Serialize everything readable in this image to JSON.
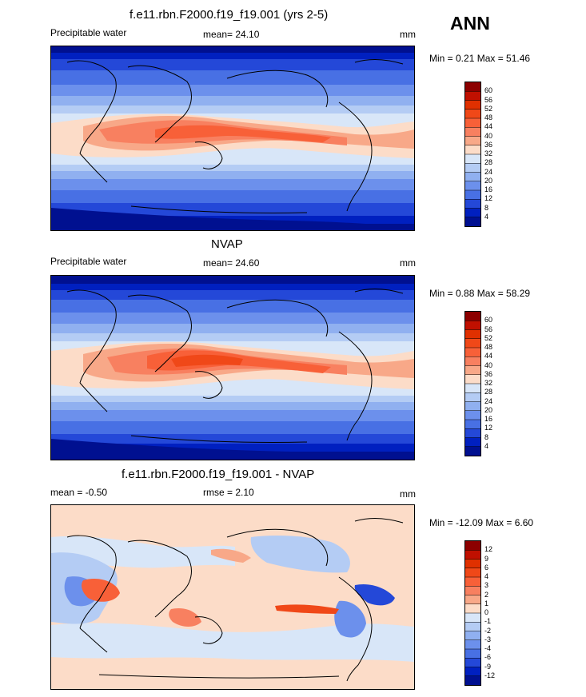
{
  "season": "ANN",
  "panels": [
    {
      "title": "f.e11.rbn.F2000.f19_f19.001 (yrs 2-5)",
      "left_label": "Precipitable water",
      "center_label": "mean=  24.10",
      "right_label": "mm",
      "minmax": "Min =   0.21 Max =  51.46"
    },
    {
      "title": "NVAP",
      "left_label": "Precipitable water",
      "center_label": "mean=  24.60",
      "right_label": "mm",
      "minmax": "Min =   0.88 Max =  58.29"
    },
    {
      "title": "f.e11.rbn.F2000.f19_f19.001 - NVAP",
      "left_label": "mean =  -0.50",
      "center_label": "rmse =   2.10",
      "right_label": "mm",
      "minmax": "Min = -12.09 Max =   6.60"
    }
  ],
  "colorbars": {
    "field": {
      "labels": [
        "60",
        "56",
        "52",
        "48",
        "44",
        "40",
        "36",
        "32",
        "28",
        "24",
        "20",
        "16",
        "12",
        "8",
        "4"
      ],
      "colors": [
        "#8c0000",
        "#c01000",
        "#e03000",
        "#f04818",
        "#f86038",
        "#f88060",
        "#f8a888",
        "#fcdcc8",
        "#d8e6f8",
        "#b4ccf4",
        "#90b0f0",
        "#6c90ec",
        "#4870e4",
        "#2448d8",
        "#0020c0",
        "#001090"
      ]
    },
    "diff": {
      "labels": [
        "12",
        "9",
        "6",
        "4",
        "3",
        "2",
        "1",
        "0",
        "-1",
        "-2",
        "-3",
        "-4",
        "-6",
        "-9",
        "-12"
      ],
      "colors": [
        "#8c0000",
        "#c01000",
        "#e03000",
        "#f04818",
        "#f86038",
        "#f88060",
        "#f8a888",
        "#fcdcc8",
        "#d8e6f8",
        "#b4ccf4",
        "#90b0f0",
        "#6c90ec",
        "#4870e4",
        "#2448d8",
        "#0020c0",
        "#001090"
      ]
    }
  }
}
